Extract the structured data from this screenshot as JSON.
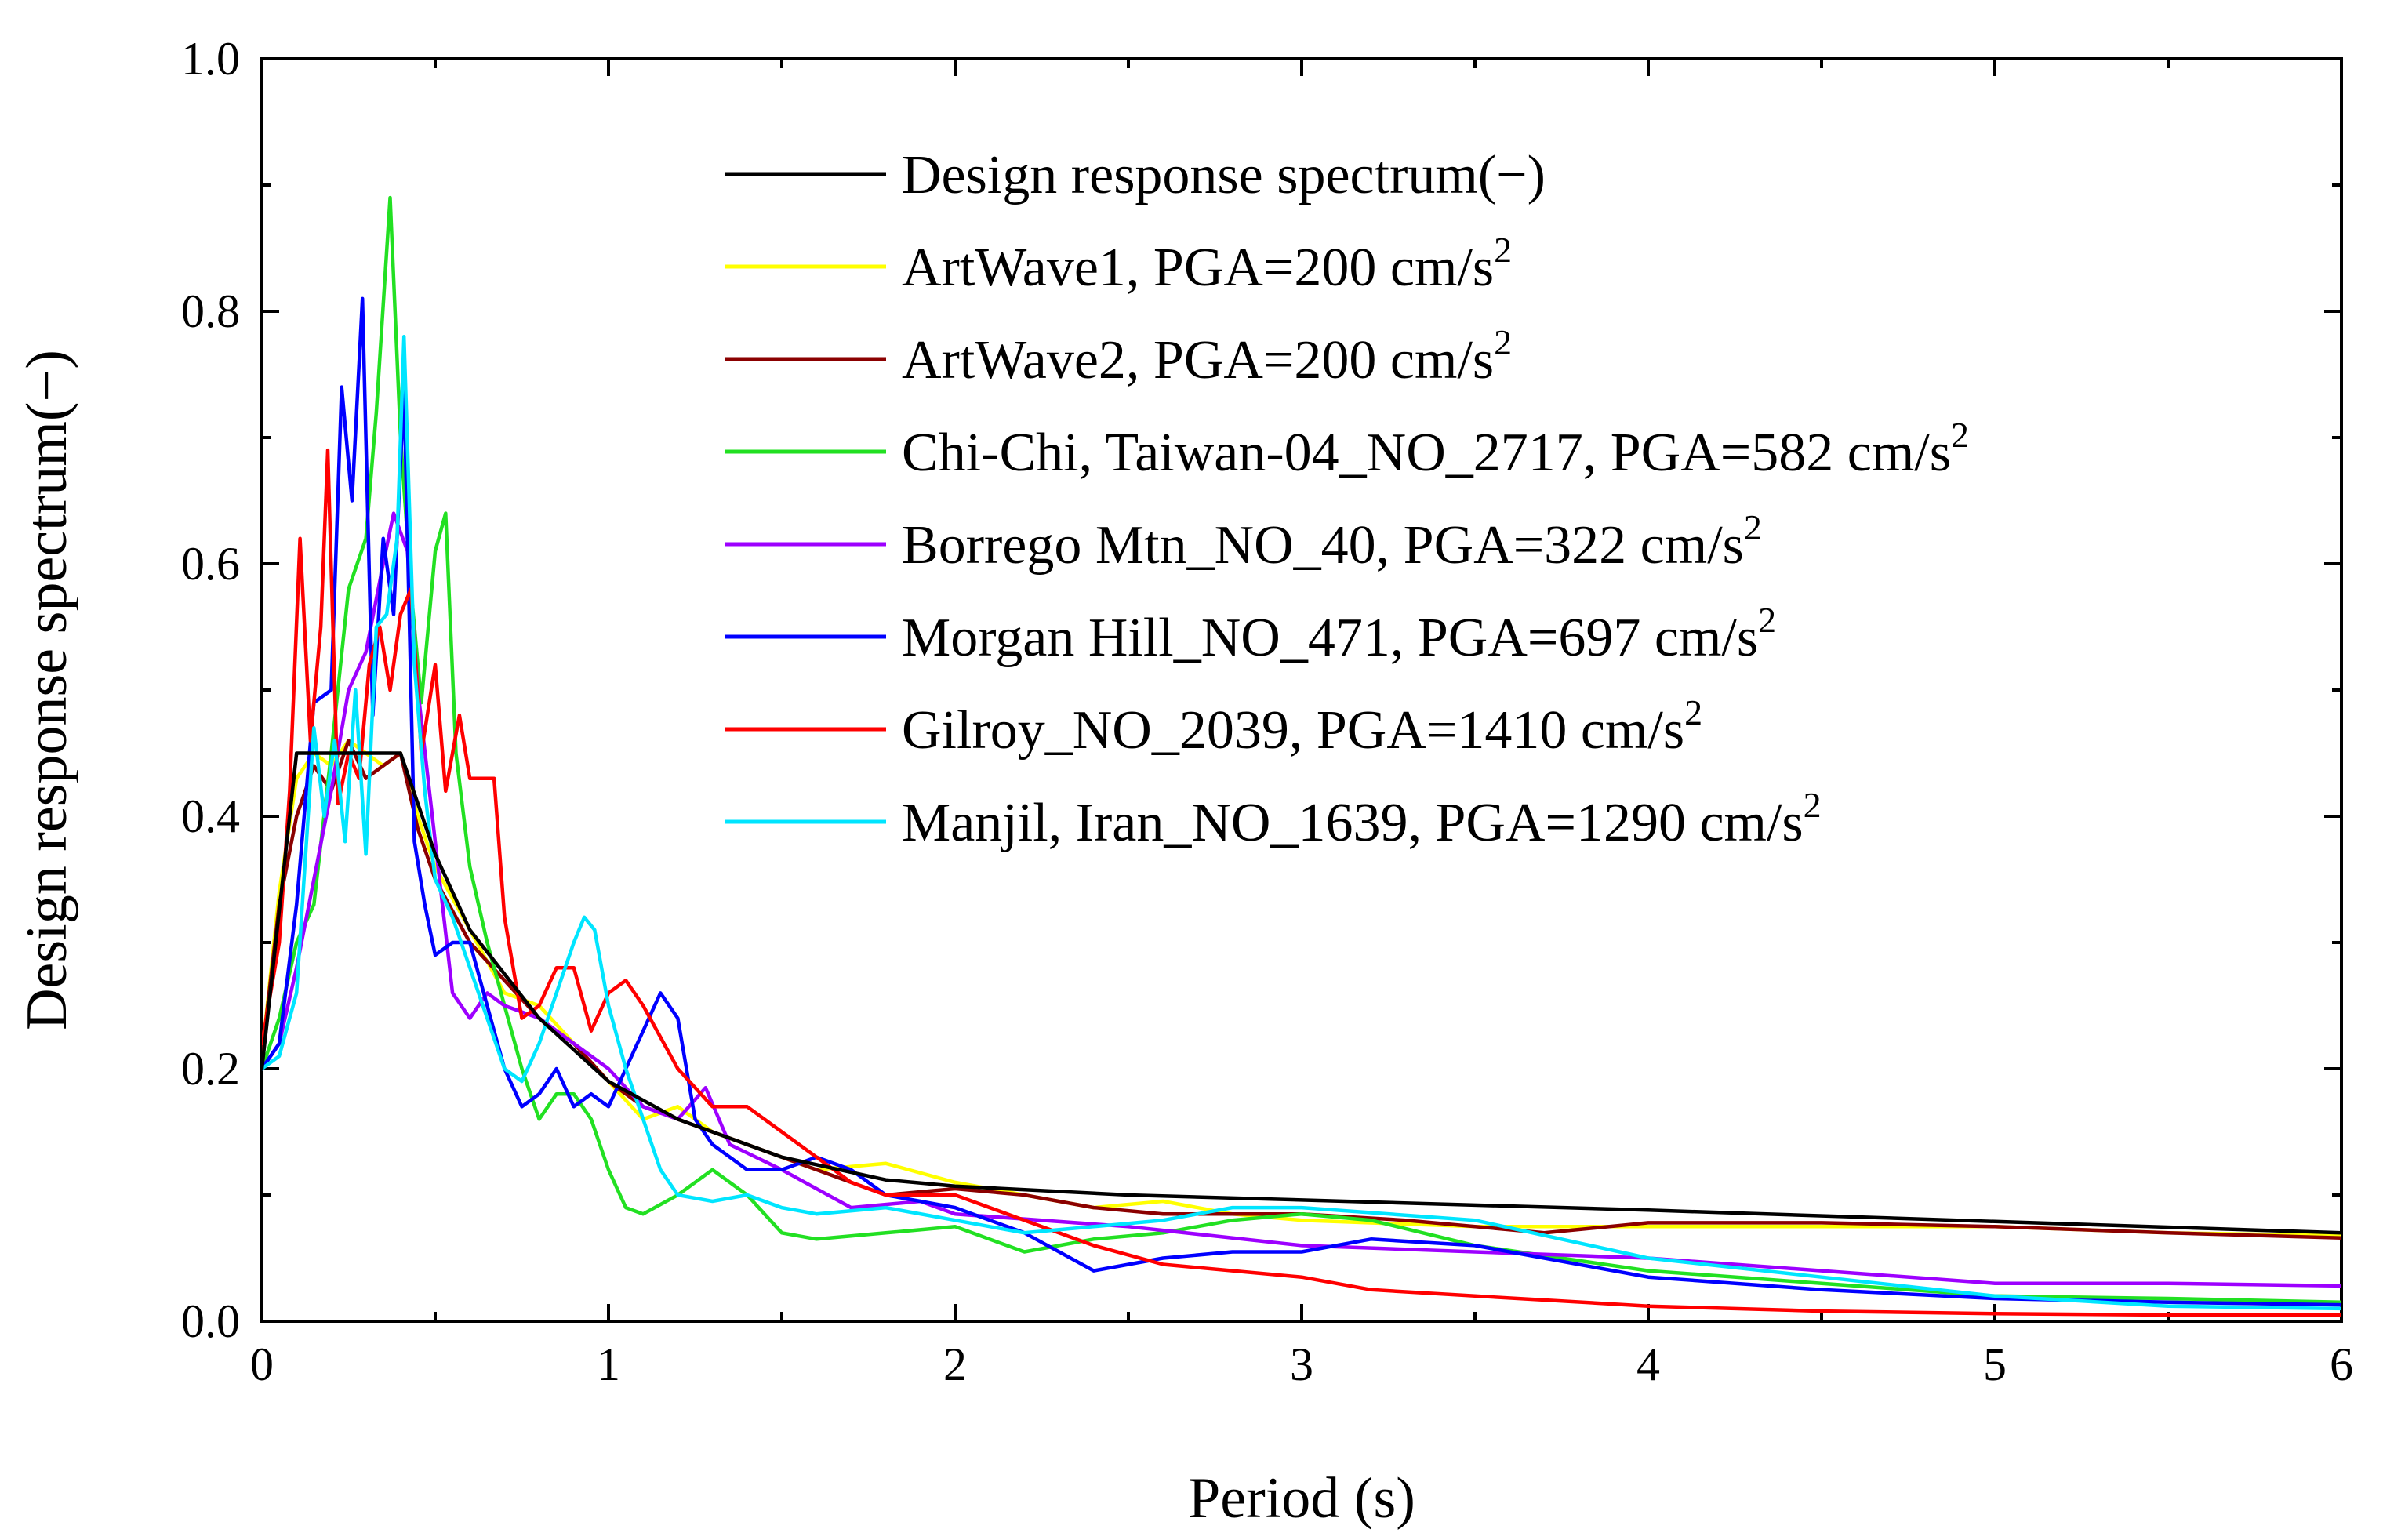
{
  "chart_data": {
    "type": "line",
    "title": "",
    "xlabel": "Period (s)",
    "ylabel": "Design response spectrum(−)",
    "xlim": [
      0,
      6
    ],
    "ylim": [
      0,
      1.0
    ],
    "x_ticks": [
      0,
      1,
      2,
      3,
      4,
      5,
      6
    ],
    "x_tick_labels": [
      "0",
      "1",
      "2",
      "3",
      "4",
      "5",
      "6"
    ],
    "y_ticks": [
      0,
      0.2,
      0.4,
      0.6,
      0.8,
      1.0
    ],
    "y_tick_labels": [
      "0.0",
      "0.2",
      "0.4",
      "0.6",
      "0.8",
      "1.0"
    ],
    "grid": false,
    "legend_position": "top-right",
    "series": [
      {
        "name": "Design response spectrum(−)",
        "label_main": "Design response spectrum(−)",
        "label_sup": "",
        "color": "#000000",
        "x": [
          0,
          0.1,
          0.2,
          0.4,
          0.5,
          0.6,
          0.8,
          1.0,
          1.2,
          1.5,
          1.8,
          2.0,
          2.5,
          3.0,
          4.0,
          5.0,
          6.0
        ],
        "y": [
          0.2,
          0.45,
          0.45,
          0.45,
          0.37,
          0.31,
          0.24,
          0.19,
          0.16,
          0.13,
          0.112,
          0.107,
          0.1,
          0.096,
          0.088,
          0.079,
          0.07
        ]
      },
      {
        "name": "ArtWave1, PGA=200 cm/s2",
        "label_main": "ArtWave1, PGA=200 cm/s",
        "label_sup": "2",
        "color": "#ffff00",
        "x": [
          0,
          0.05,
          0.1,
          0.15,
          0.2,
          0.25,
          0.3,
          0.35,
          0.4,
          0.45,
          0.5,
          0.6,
          0.7,
          0.8,
          0.9,
          1.0,
          1.1,
          1.2,
          1.3,
          1.4,
          1.5,
          1.6,
          1.8,
          2.0,
          2.2,
          2.4,
          2.6,
          2.8,
          3.0,
          3.5,
          4.0,
          4.5,
          5.0,
          5.5,
          6.0
        ],
        "y": [
          0.21,
          0.34,
          0.43,
          0.45,
          0.44,
          0.46,
          0.45,
          0.44,
          0.45,
          0.4,
          0.36,
          0.31,
          0.26,
          0.25,
          0.22,
          0.19,
          0.16,
          0.17,
          0.15,
          0.14,
          0.13,
          0.12,
          0.125,
          0.11,
          0.1,
          0.09,
          0.095,
          0.085,
          0.08,
          0.075,
          0.075,
          0.075,
          0.075,
          0.07,
          0.068
        ]
      },
      {
        "name": "ArtWave2, PGA=200 cm/s2",
        "label_main": "ArtWave2, PGA=200 cm/s",
        "label_sup": "2",
        "color": "#8b0000",
        "x": [
          0,
          0.05,
          0.1,
          0.15,
          0.2,
          0.25,
          0.3,
          0.35,
          0.4,
          0.45,
          0.5,
          0.6,
          0.7,
          0.8,
          0.9,
          1.0,
          1.1,
          1.2,
          1.3,
          1.4,
          1.5,
          1.6,
          1.8,
          2.0,
          2.2,
          2.4,
          2.6,
          2.8,
          3.0,
          3.3,
          3.7,
          4.0,
          4.5,
          5.0,
          5.5,
          6.0
        ],
        "y": [
          0.21,
          0.33,
          0.4,
          0.44,
          0.42,
          0.46,
          0.43,
          0.44,
          0.45,
          0.39,
          0.35,
          0.3,
          0.27,
          0.24,
          0.22,
          0.19,
          0.17,
          0.16,
          0.15,
          0.14,
          0.13,
          0.12,
          0.1,
          0.105,
          0.1,
          0.09,
          0.085,
          0.085,
          0.085,
          0.08,
          0.07,
          0.078,
          0.078,
          0.075,
          0.07,
          0.066
        ]
      },
      {
        "name": "Chi-Chi, Taiwan-04_NO_2717, PGA=582 cm/s2",
        "label_main": "Chi-Chi, Taiwan-04_NO_2717, PGA=582 cm/s",
        "label_sup": "2",
        "color": "#22e022",
        "x": [
          0,
          0.05,
          0.1,
          0.15,
          0.2,
          0.25,
          0.3,
          0.33,
          0.37,
          0.4,
          0.43,
          0.46,
          0.5,
          0.53,
          0.56,
          0.6,
          0.65,
          0.7,
          0.75,
          0.8,
          0.85,
          0.9,
          0.95,
          1.0,
          1.05,
          1.1,
          1.2,
          1.3,
          1.4,
          1.5,
          1.6,
          1.8,
          2.0,
          2.2,
          2.4,
          2.6,
          2.8,
          3.0,
          3.2,
          3.5,
          4.0,
          4.5,
          5.0,
          5.5,
          6.0
        ],
        "y": [
          0.2,
          0.24,
          0.3,
          0.33,
          0.45,
          0.58,
          0.62,
          0.72,
          0.89,
          0.7,
          0.58,
          0.49,
          0.61,
          0.64,
          0.45,
          0.36,
          0.3,
          0.25,
          0.2,
          0.16,
          0.18,
          0.18,
          0.16,
          0.12,
          0.09,
          0.085,
          0.1,
          0.12,
          0.1,
          0.07,
          0.065,
          0.07,
          0.075,
          0.055,
          0.065,
          0.07,
          0.08,
          0.085,
          0.08,
          0.06,
          0.04,
          0.03,
          0.02,
          0.018,
          0.015
        ]
      },
      {
        "name": "Borrego Mtn_NO_40, PGA=322 cm/s2",
        "label_main": "Borrego Mtn_NO_40, PGA=322 cm/s",
        "label_sup": "2",
        "color": "#9d00ff",
        "x": [
          0,
          0.05,
          0.1,
          0.15,
          0.2,
          0.25,
          0.3,
          0.35,
          0.38,
          0.42,
          0.45,
          0.5,
          0.55,
          0.6,
          0.65,
          0.7,
          0.8,
          0.9,
          1.0,
          1.1,
          1.2,
          1.28,
          1.35,
          1.5,
          1.7,
          1.9,
          2.0,
          2.5,
          3.0,
          3.5,
          4.0,
          4.5,
          5.0,
          5.5,
          6.0
        ],
        "y": [
          0.2,
          0.22,
          0.28,
          0.35,
          0.42,
          0.5,
          0.53,
          0.6,
          0.64,
          0.61,
          0.5,
          0.38,
          0.26,
          0.24,
          0.26,
          0.25,
          0.24,
          0.22,
          0.2,
          0.17,
          0.16,
          0.185,
          0.14,
          0.12,
          0.09,
          0.095,
          0.085,
          0.075,
          0.06,
          0.055,
          0.05,
          0.04,
          0.03,
          0.03,
          0.028
        ]
      },
      {
        "name": "Morgan Hill_NO_471, PGA=697 cm/s2",
        "label_main": "Morgan Hill_NO_471, PGA=697 cm/s",
        "label_sup": "2",
        "color": "#0000ff",
        "x": [
          0,
          0.05,
          0.1,
          0.15,
          0.2,
          0.23,
          0.26,
          0.29,
          0.32,
          0.35,
          0.38,
          0.41,
          0.44,
          0.47,
          0.5,
          0.55,
          0.6,
          0.65,
          0.7,
          0.75,
          0.8,
          0.85,
          0.9,
          0.95,
          1.0,
          1.05,
          1.1,
          1.15,
          1.2,
          1.25,
          1.3,
          1.4,
          1.5,
          1.6,
          1.7,
          1.8,
          2.0,
          2.2,
          2.4,
          2.6,
          2.8,
          3.0,
          3.2,
          3.5,
          4.0,
          4.5,
          5.0,
          5.5,
          6.0
        ],
        "y": [
          0.2,
          0.22,
          0.33,
          0.49,
          0.5,
          0.74,
          0.65,
          0.81,
          0.48,
          0.62,
          0.56,
          0.74,
          0.38,
          0.33,
          0.29,
          0.3,
          0.3,
          0.25,
          0.2,
          0.17,
          0.18,
          0.2,
          0.17,
          0.18,
          0.17,
          0.2,
          0.23,
          0.26,
          0.24,
          0.16,
          0.14,
          0.12,
          0.12,
          0.13,
          0.12,
          0.1,
          0.09,
          0.07,
          0.04,
          0.05,
          0.055,
          0.055,
          0.065,
          0.06,
          0.035,
          0.025,
          0.018,
          0.015,
          0.013
        ]
      },
      {
        "name": "Gilroy_NO_2039, PGA=1410 cm/s2",
        "label_main": "Gilroy_NO_2039, PGA=1410 cm/s",
        "label_sup": "2",
        "color": "#ff0000",
        "x": [
          0,
          0.05,
          0.08,
          0.11,
          0.14,
          0.17,
          0.19,
          0.22,
          0.25,
          0.28,
          0.31,
          0.34,
          0.37,
          0.4,
          0.43,
          0.46,
          0.5,
          0.53,
          0.57,
          0.6,
          0.64,
          0.67,
          0.7,
          0.75,
          0.8,
          0.85,
          0.9,
          0.95,
          1.0,
          1.05,
          1.1,
          1.2,
          1.3,
          1.4,
          1.5,
          1.6,
          1.7,
          1.8,
          2.0,
          2.2,
          2.4,
          2.6,
          2.8,
          3.0,
          3.2,
          3.5,
          4.0,
          4.5,
          5.0,
          5.5,
          6.0
        ],
        "y": [
          0.22,
          0.3,
          0.42,
          0.62,
          0.46,
          0.55,
          0.69,
          0.41,
          0.45,
          0.43,
          0.52,
          0.55,
          0.5,
          0.56,
          0.58,
          0.45,
          0.52,
          0.42,
          0.48,
          0.43,
          0.43,
          0.43,
          0.32,
          0.24,
          0.25,
          0.28,
          0.28,
          0.23,
          0.26,
          0.27,
          0.25,
          0.2,
          0.17,
          0.17,
          0.15,
          0.13,
          0.11,
          0.1,
          0.1,
          0.08,
          0.06,
          0.045,
          0.04,
          0.035,
          0.025,
          0.02,
          0.012,
          0.008,
          0.006,
          0.005,
          0.005
        ]
      },
      {
        "name": "Manjil, Iran_NO_1639, PGA=1290 cm/s2",
        "label_main": "Manjil, Iran_NO_1639, PGA=1290 cm/s",
        "label_sup": "2",
        "color": "#00e5ff",
        "x": [
          0,
          0.05,
          0.1,
          0.15,
          0.18,
          0.21,
          0.24,
          0.27,
          0.3,
          0.33,
          0.36,
          0.39,
          0.41,
          0.44,
          0.47,
          0.5,
          0.55,
          0.6,
          0.65,
          0.7,
          0.75,
          0.8,
          0.85,
          0.9,
          0.93,
          0.96,
          1.0,
          1.05,
          1.1,
          1.15,
          1.2,
          1.3,
          1.4,
          1.5,
          1.6,
          1.8,
          2.0,
          2.2,
          2.4,
          2.6,
          2.8,
          3.0,
          3.5,
          4.0,
          4.5,
          5.0,
          5.5,
          6.0
        ],
        "y": [
          0.2,
          0.21,
          0.26,
          0.47,
          0.4,
          0.46,
          0.38,
          0.5,
          0.37,
          0.55,
          0.56,
          0.62,
          0.78,
          0.52,
          0.42,
          0.35,
          0.32,
          0.28,
          0.24,
          0.2,
          0.19,
          0.22,
          0.26,
          0.3,
          0.32,
          0.31,
          0.25,
          0.2,
          0.16,
          0.12,
          0.1,
          0.095,
          0.1,
          0.09,
          0.085,
          0.09,
          0.08,
          0.07,
          0.075,
          0.08,
          0.09,
          0.09,
          0.08,
          0.05,
          0.035,
          0.02,
          0.012,
          0.01
        ]
      }
    ]
  }
}
